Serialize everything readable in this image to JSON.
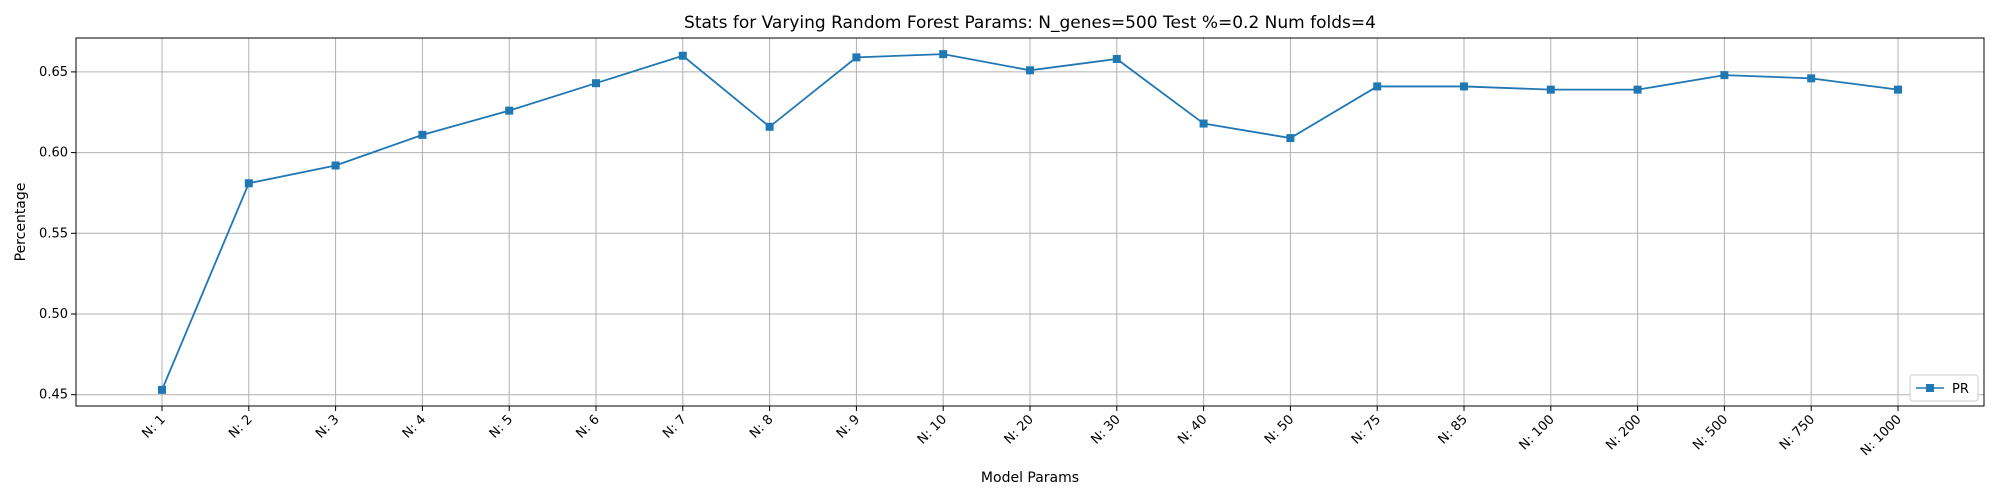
{
  "chart_data": {
    "type": "line",
    "title": "Stats for Varying Random Forest Params: N_genes=500 Test %=0.2 Num folds=4",
    "xlabel": "Model Params",
    "ylabel": "Percentage",
    "categories": [
      "N: 1",
      "N: 2",
      "N: 3",
      "N: 4",
      "N: 5",
      "N: 6",
      "N: 7",
      "N: 8",
      "N: 9",
      "N: 10",
      "N: 20",
      "N: 30",
      "N: 40",
      "N: 50",
      "N: 75",
      "N: 85",
      "N: 100",
      "N: 200",
      "N: 500",
      "N: 750",
      "N: 1000"
    ],
    "series": [
      {
        "name": "PR",
        "color": "#1f77b4",
        "marker": "square",
        "values": [
          0.453,
          0.581,
          0.592,
          0.611,
          0.626,
          0.643,
          0.66,
          0.616,
          0.659,
          0.661,
          0.651,
          0.658,
          0.618,
          0.609,
          0.641,
          0.641,
          0.639,
          0.639,
          0.648,
          0.646,
          0.639
        ]
      }
    ],
    "ylim": [
      0.443,
      0.671
    ],
    "yticks": [
      "0.45",
      "0.50",
      "0.55",
      "0.60",
      "0.65"
    ],
    "grid": true,
    "legend_position": "lower-right"
  }
}
